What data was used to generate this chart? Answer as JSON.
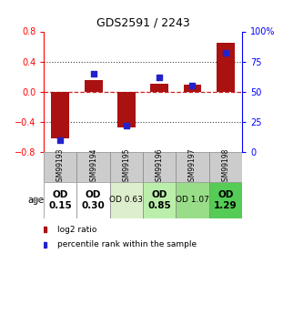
{
  "title": "GDS2591 / 2243",
  "samples": [
    "GSM99193",
    "GSM99194",
    "GSM99195",
    "GSM99196",
    "GSM99197",
    "GSM99198"
  ],
  "log2_ratio": [
    -0.62,
    0.15,
    -0.48,
    0.1,
    0.09,
    0.65
  ],
  "percentile_rank": [
    10,
    65,
    22,
    62,
    55,
    82
  ],
  "bar_color": "#aa1111",
  "dot_color": "#2222cc",
  "ylim_left": [
    -0.8,
    0.8
  ],
  "ylim_right": [
    0,
    100
  ],
  "yticks_left": [
    -0.8,
    -0.4,
    0.0,
    0.4,
    0.8
  ],
  "yticks_right": [
    0,
    25,
    50,
    75,
    100
  ],
  "ytick_labels_right": [
    "0",
    "25",
    "50",
    "75",
    "100%"
  ],
  "row_labels": [
    "OD\n0.15",
    "OD\n0.30",
    "OD 0.63",
    "OD\n0.85",
    "OD 1.07",
    "OD\n1.29"
  ],
  "row_colors": [
    "#ffffff",
    "#ffffff",
    "#ddeecc",
    "#bbeeaa",
    "#99dd88",
    "#55cc55"
  ],
  "row_fontsize": [
    7.5,
    7.5,
    6.5,
    7.5,
    6.5,
    7.5
  ],
  "row_bold": [
    true,
    true,
    false,
    true,
    false,
    true
  ],
  "age_label": "age",
  "hline_color": "#cc2222",
  "dotted_color": "#444444",
  "bg_color": "#ffffff",
  "sample_label_bg": "#cccccc",
  "legend_red_label": "log2 ratio",
  "legend_blue_label": "percentile rank within the sample"
}
